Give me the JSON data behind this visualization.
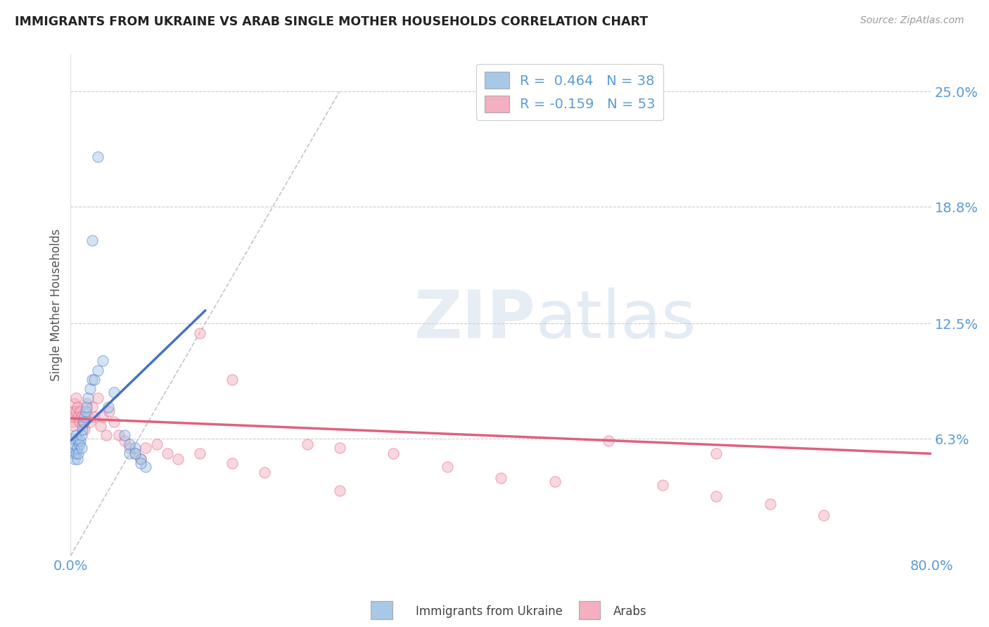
{
  "title": "IMMIGRANTS FROM UKRAINE VS ARAB SINGLE MOTHER HOUSEHOLDS CORRELATION CHART",
  "source": "Source: ZipAtlas.com",
  "ylabel": "Single Mother Households",
  "xlim": [
    0.0,
    0.8
  ],
  "ylim": [
    0.0,
    0.27
  ],
  "yticks": [
    0.063,
    0.125,
    0.188,
    0.25
  ],
  "ytick_labels": [
    "6.3%",
    "12.5%",
    "18.8%",
    "25.0%"
  ],
  "xticks": [
    0.0,
    0.8
  ],
  "xtick_labels": [
    "0.0%",
    "80.0%"
  ],
  "ukraine_R": 0.464,
  "ukraine_N": 38,
  "arab_R": -0.159,
  "arab_N": 53,
  "ukraine_color": "#a8c8e8",
  "arab_color": "#f4b0c0",
  "ukraine_line_color": "#4472c4",
  "arab_line_color": "#e06080",
  "legend_ukraine": "Immigrants from Ukraine",
  "legend_arab": "Arabs",
  "watermark_zip": "ZIP",
  "watermark_atlas": "atlas",
  "background_color": "#ffffff",
  "title_color": "#222222",
  "axis_label_color": "#555555",
  "tick_label_color": "#5b9bd5",
  "ukraine_x": [
    0.002,
    0.003,
    0.003,
    0.004,
    0.004,
    0.005,
    0.005,
    0.006,
    0.006,
    0.007,
    0.007,
    0.008,
    0.009,
    0.01,
    0.01,
    0.011,
    0.012,
    0.013,
    0.014,
    0.015,
    0.016,
    0.018,
    0.02,
    0.022,
    0.025,
    0.03,
    0.035,
    0.04,
    0.05,
    0.055,
    0.06,
    0.065,
    0.07,
    0.055,
    0.06,
    0.065,
    0.025,
    0.02
  ],
  "ukraine_y": [
    0.063,
    0.058,
    0.055,
    0.06,
    0.052,
    0.065,
    0.055,
    0.058,
    0.052,
    0.062,
    0.055,
    0.06,
    0.062,
    0.065,
    0.058,
    0.068,
    0.072,
    0.075,
    0.078,
    0.08,
    0.085,
    0.09,
    0.095,
    0.095,
    0.1,
    0.105,
    0.08,
    0.088,
    0.065,
    0.055,
    0.058,
    0.052,
    0.048,
    0.06,
    0.055,
    0.05,
    0.215,
    0.17
  ],
  "arab_x": [
    0.002,
    0.003,
    0.003,
    0.004,
    0.004,
    0.005,
    0.005,
    0.006,
    0.007,
    0.008,
    0.009,
    0.01,
    0.011,
    0.012,
    0.013,
    0.015,
    0.016,
    0.018,
    0.02,
    0.022,
    0.025,
    0.028,
    0.03,
    0.033,
    0.036,
    0.04,
    0.045,
    0.05,
    0.055,
    0.06,
    0.065,
    0.07,
    0.08,
    0.09,
    0.1,
    0.12,
    0.15,
    0.18,
    0.22,
    0.25,
    0.3,
    0.35,
    0.4,
    0.45,
    0.5,
    0.55,
    0.6,
    0.65,
    0.7,
    0.12,
    0.15,
    0.25,
    0.6
  ],
  "arab_y": [
    0.072,
    0.07,
    0.078,
    0.075,
    0.082,
    0.078,
    0.085,
    0.08,
    0.075,
    0.072,
    0.078,
    0.075,
    0.07,
    0.072,
    0.068,
    0.082,
    0.075,
    0.072,
    0.08,
    0.075,
    0.085,
    0.07,
    0.075,
    0.065,
    0.078,
    0.072,
    0.065,
    0.062,
    0.058,
    0.055,
    0.052,
    0.058,
    0.06,
    0.055,
    0.052,
    0.055,
    0.05,
    0.045,
    0.06,
    0.058,
    0.055,
    0.048,
    0.042,
    0.04,
    0.062,
    0.038,
    0.032,
    0.028,
    0.022,
    0.12,
    0.095,
    0.035,
    0.055
  ],
  "ukraine_trend_x": [
    0.0,
    0.125
  ],
  "ukraine_trend_y": [
    0.062,
    0.132
  ],
  "arab_trend_x": [
    0.0,
    0.8
  ],
  "arab_trend_y": [
    0.074,
    0.055
  ],
  "diag_line_x": [
    0.0,
    0.25
  ],
  "diag_line_y": [
    0.0,
    0.25
  ]
}
